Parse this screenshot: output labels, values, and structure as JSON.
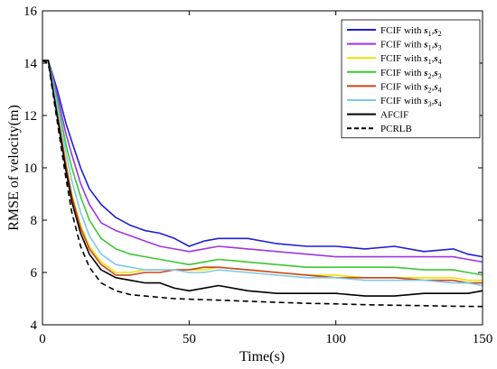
{
  "chart_data": {
    "type": "line",
    "title": "",
    "xlabel": "Time(s)",
    "ylabel": "RMSE of velocity(m)",
    "xlim": [
      0,
      150
    ],
    "ylim": [
      4,
      16
    ],
    "xticks": [
      0,
      50,
      100,
      150
    ],
    "yticks": [
      4,
      6,
      8,
      10,
      12,
      14,
      16
    ],
    "grid": false,
    "legend_position": "top-right",
    "series": [
      {
        "name": "FCIF with s1,s2",
        "legend": {
          "pre": "FCIF with ",
          "a": "s",
          "asub": "1",
          "b": "s",
          "bsub": "2"
        },
        "color": "#1f1fd6",
        "dash": "solid",
        "x": [
          0,
          2,
          5,
          8,
          10,
          13,
          16,
          20,
          25,
          30,
          35,
          40,
          45,
          50,
          55,
          60,
          70,
          80,
          90,
          100,
          110,
          120,
          130,
          140,
          145,
          150
        ],
        "y": [
          14.1,
          14.1,
          13.0,
          11.7,
          11.0,
          10.0,
          9.2,
          8.6,
          8.1,
          7.8,
          7.6,
          7.5,
          7.3,
          7.0,
          7.2,
          7.3,
          7.3,
          7.1,
          7.0,
          7.0,
          6.9,
          7.0,
          6.8,
          6.9,
          6.7,
          6.6
        ]
      },
      {
        "name": "FCIF with s1,s3",
        "legend": {
          "pre": "FCIF with ",
          "a": "s",
          "asub": "1",
          "b": "s",
          "bsub": "3"
        },
        "color": "#a035e8",
        "dash": "solid",
        "x": [
          0,
          2,
          5,
          8,
          10,
          13,
          16,
          20,
          25,
          30,
          35,
          40,
          45,
          50,
          55,
          60,
          70,
          80,
          90,
          100,
          110,
          120,
          130,
          140,
          145,
          150
        ],
        "y": [
          14.1,
          14.1,
          12.8,
          11.3,
          10.5,
          9.4,
          8.6,
          7.9,
          7.6,
          7.4,
          7.2,
          7.0,
          6.9,
          6.8,
          6.9,
          7.0,
          6.9,
          6.8,
          6.7,
          6.6,
          6.6,
          6.6,
          6.6,
          6.6,
          6.5,
          6.4
        ]
      },
      {
        "name": "FCIF with s1,s4",
        "legend": {
          "pre": "FCIF with ",
          "a": "s",
          "asub": "1",
          "b": "s",
          "bsub": "4"
        },
        "color": "#f2e000",
        "dash": "solid",
        "x": [
          0,
          2,
          5,
          8,
          10,
          13,
          16,
          20,
          25,
          30,
          35,
          40,
          45,
          50,
          55,
          60,
          70,
          80,
          90,
          100,
          110,
          120,
          130,
          140,
          145,
          150
        ],
        "y": [
          14.1,
          14.1,
          12.2,
          10.2,
          9.0,
          7.8,
          7.0,
          6.4,
          6.0,
          6.0,
          6.1,
          6.1,
          6.1,
          6.1,
          6.1,
          6.2,
          6.1,
          6.0,
          5.9,
          5.9,
          5.8,
          5.8,
          5.8,
          5.8,
          5.7,
          5.7
        ]
      },
      {
        "name": "FCIF with s2,s3",
        "legend": {
          "pre": "FCIF with ",
          "a": "s",
          "asub": "2",
          "b": "s",
          "bsub": "3"
        },
        "color": "#3cc832",
        "dash": "solid",
        "x": [
          0,
          2,
          5,
          8,
          10,
          13,
          16,
          20,
          25,
          30,
          35,
          40,
          45,
          50,
          55,
          60,
          70,
          80,
          90,
          100,
          110,
          120,
          130,
          140,
          145,
          150
        ],
        "y": [
          14.1,
          14.1,
          12.6,
          10.9,
          10.0,
          8.9,
          8.0,
          7.3,
          6.9,
          6.7,
          6.6,
          6.5,
          6.4,
          6.3,
          6.4,
          6.5,
          6.4,
          6.3,
          6.2,
          6.2,
          6.2,
          6.2,
          6.1,
          6.1,
          6.0,
          5.9
        ]
      },
      {
        "name": "FCIF with s2,s4",
        "legend": {
          "pre": "FCIF with ",
          "a": "s",
          "asub": "2",
          "b": "s",
          "bsub": "4"
        },
        "color": "#c8461e",
        "dash": "solid",
        "x": [
          0,
          2,
          5,
          8,
          10,
          13,
          16,
          20,
          25,
          30,
          35,
          40,
          45,
          50,
          55,
          60,
          70,
          80,
          90,
          100,
          110,
          120,
          130,
          140,
          145,
          150
        ],
        "y": [
          14.1,
          14.1,
          12.1,
          10.1,
          8.9,
          7.7,
          6.9,
          6.3,
          5.9,
          5.9,
          6.0,
          6.0,
          6.1,
          6.1,
          6.2,
          6.2,
          6.1,
          6.0,
          5.9,
          5.8,
          5.8,
          5.8,
          5.7,
          5.7,
          5.6,
          5.6
        ]
      },
      {
        "name": "FCIF with s3,s4",
        "legend": {
          "pre": "FCIF with ",
          "a": "s",
          "asub": "3",
          "b": "s",
          "bsub": "4"
        },
        "color": "#7ec8f0",
        "dash": "solid",
        "x": [
          0,
          2,
          5,
          8,
          10,
          13,
          16,
          20,
          25,
          30,
          35,
          40,
          45,
          50,
          55,
          60,
          70,
          80,
          90,
          100,
          110,
          120,
          130,
          140,
          145,
          150
        ],
        "y": [
          14.1,
          14.1,
          12.4,
          10.6,
          9.5,
          8.3,
          7.4,
          6.7,
          6.3,
          6.2,
          6.1,
          6.1,
          6.1,
          6.0,
          6.0,
          6.1,
          6.0,
          5.9,
          5.8,
          5.8,
          5.7,
          5.7,
          5.7,
          5.6,
          5.6,
          5.5
        ]
      },
      {
        "name": "AFCIF",
        "legend": {
          "pre": "AFCIF"
        },
        "color": "#000000",
        "dash": "solid",
        "x": [
          0,
          2,
          5,
          8,
          10,
          13,
          16,
          20,
          25,
          30,
          35,
          40,
          45,
          50,
          55,
          60,
          70,
          80,
          90,
          100,
          110,
          120,
          130,
          140,
          145,
          150
        ],
        "y": [
          14.1,
          14.1,
          12.0,
          9.9,
          8.7,
          7.5,
          6.7,
          6.1,
          5.8,
          5.7,
          5.6,
          5.6,
          5.4,
          5.3,
          5.4,
          5.5,
          5.3,
          5.2,
          5.2,
          5.2,
          5.1,
          5.1,
          5.2,
          5.2,
          5.2,
          5.3
        ]
      },
      {
        "name": "PCRLB",
        "legend": {
          "pre": "PCRLB"
        },
        "color": "#000000",
        "dash": "dashed",
        "x": [
          0,
          2,
          5,
          8,
          10,
          13,
          16,
          20,
          25,
          30,
          35,
          40,
          45,
          50,
          60,
          70,
          80,
          90,
          100,
          110,
          120,
          130,
          140,
          150
        ],
        "y": [
          14.1,
          14.0,
          11.8,
          9.6,
          8.3,
          7.0,
          6.2,
          5.6,
          5.3,
          5.15,
          5.1,
          5.05,
          5.0,
          4.98,
          4.94,
          4.9,
          4.86,
          4.82,
          4.8,
          4.77,
          4.75,
          4.73,
          4.71,
          4.7
        ]
      }
    ]
  }
}
